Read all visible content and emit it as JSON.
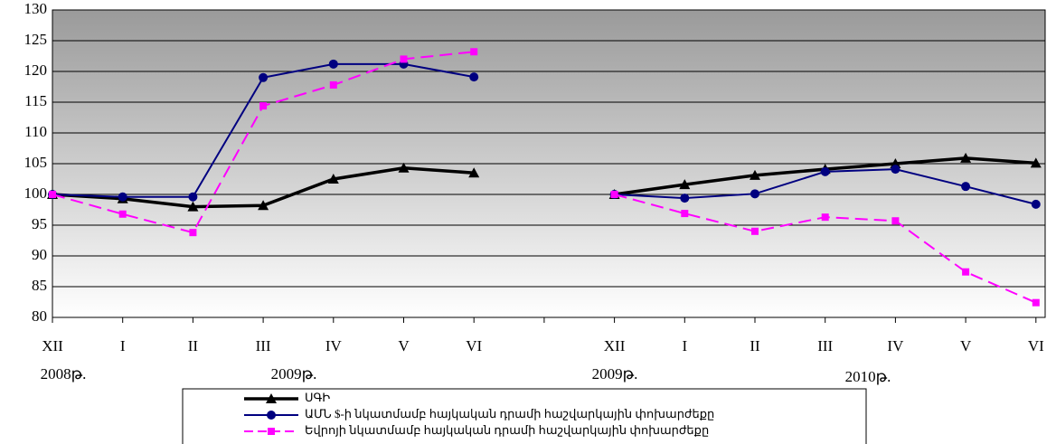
{
  "chart_data": {
    "type": "line",
    "categories": [
      "XII",
      "I",
      "II",
      "III",
      "IV",
      "V",
      "VI",
      null,
      "XII",
      "I",
      "II",
      "III",
      "IV",
      "V",
      "VI"
    ],
    "annotations": [
      "2008թ.",
      "2009թ.",
      "2009թ.",
      "2010թ."
    ],
    "series": [
      {
        "name": "ՍԳԻ",
        "color": "#000000",
        "values": [
          100,
          99.3,
          98,
          98.2,
          102.5,
          104.3,
          103.5,
          null,
          100,
          101.6,
          103.1,
          104.1,
          105,
          105.9,
          105.1
        ]
      },
      {
        "name": "ԱՄՆ $-ի նկատմամբ հայկական դրամի հաշվարկային փոխարժեքը",
        "color": "#000080",
        "values": [
          100,
          99.6,
          99.6,
          119,
          121.2,
          121.2,
          119.1,
          null,
          100,
          99.4,
          100.1,
          103.7,
          104.1,
          101.3,
          98.4
        ]
      },
      {
        "name": "Եվրոյի նկատմամբ հայկական դրամի հաշվարկային փոխարժեքը",
        "color": "#ff00ff",
        "values": [
          100,
          96.8,
          93.8,
          114.4,
          117.8,
          122,
          123.2,
          null,
          100,
          96.9,
          94,
          96.3,
          95.7,
          87.4,
          82.4
        ]
      }
    ],
    "ylim": [
      80,
      130
    ],
    "yticks": [
      80,
      85,
      90,
      95,
      100,
      105,
      110,
      115,
      120,
      125,
      130
    ],
    "grid": true
  }
}
